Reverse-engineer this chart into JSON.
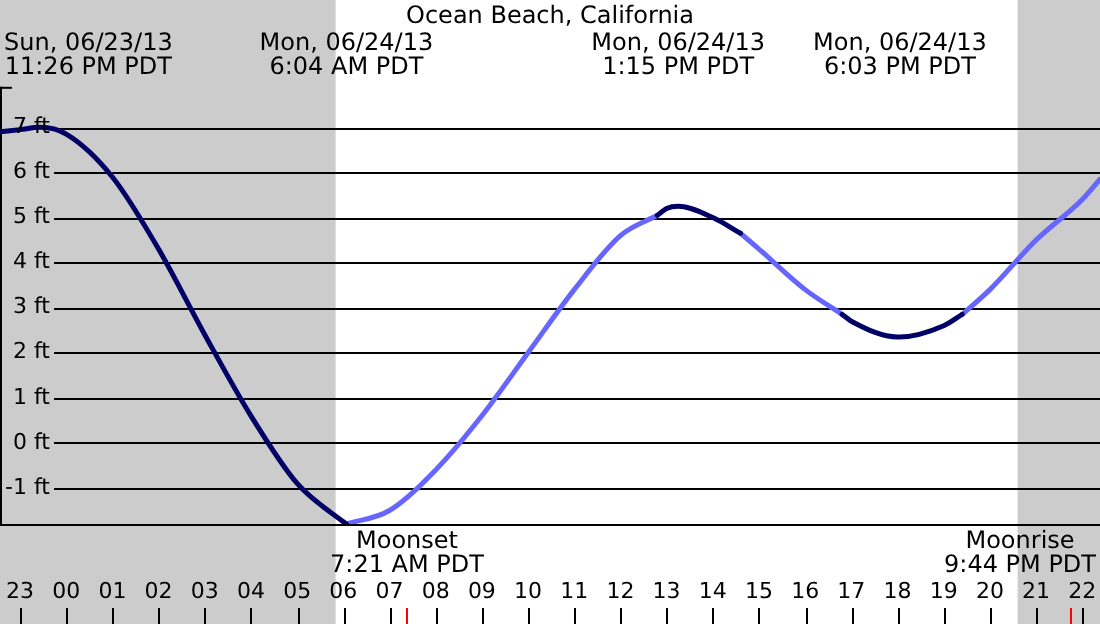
{
  "chart_data": {
    "type": "line",
    "title": "Ocean Beach, California",
    "series": [
      {
        "color": "#000066",
        "x": [
          "--06-23T22:34",
          "--06-23T23:00",
          "--06-23T23:26",
          "--06-24T00:00",
          "--06-24T01:00",
          "--06-24T02:00",
          "--06-24T03:00",
          "--06-24T04:00",
          "--06-24T05:00",
          "--06-24T06:00",
          "--06-24T06:04",
          "--06-24T09:00",
          "--06-24T12:48",
          "--06-24T13:00",
          "--06-24T13:15",
          "--06-24T14:00",
          "--06-24T14:36",
          "--06-24T15:42",
          "--06-24T16:48",
          "--06-24T17:00",
          "--06-24T18:00",
          "--06-24T18:03",
          "--06-24T19:00",
          "--06-24T19:24"
        ],
        "values": [
          6.9,
          6.95,
          7.0,
          6.85,
          5.9,
          4.3,
          2.4,
          0.6,
          -0.9,
          -1.75,
          -1.8,
          null,
          5.05,
          5.2,
          5.25,
          5.0,
          4.65,
          null,
          2.85,
          2.7,
          2.35,
          2.35,
          2.6,
          2.85
        ]
      },
      {
        "color": "#6666ff",
        "x": [
          "--06-24T06:04",
          "--06-24T07:00",
          "--06-24T08:00",
          "--06-24T09:00",
          "--06-24T10:00",
          "--06-24T11:00",
          "--06-24T12:00",
          "--06-24T12:48",
          "--06-24T13:42",
          "--06-24T14:36",
          "--06-24T15:00",
          "--06-24T16:00",
          "--06-24T16:48",
          "--06-24T18:06",
          "--06-24T19:24",
          "--06-24T20:00",
          "--06-24T21:00",
          "--06-24T22:00",
          "--06-24T22:23"
        ],
        "values": [
          -1.8,
          -1.5,
          -0.6,
          0.6,
          2.0,
          3.4,
          4.6,
          5.05,
          null,
          4.65,
          4.3,
          3.4,
          2.85,
          null,
          2.85,
          3.4,
          4.5,
          5.4,
          5.85
        ]
      }
    ],
    "xlim": [
      "--06-23T22:34",
      "--06-24T22:23"
    ],
    "xticks": [
      {
        "value": "--06-23T23:00",
        "label": "23"
      },
      {
        "value": "--06-24T00:00",
        "label": "00"
      },
      {
        "value": "--06-24T01:00",
        "label": "01"
      },
      {
        "value": "--06-24T02:00",
        "label": "02"
      },
      {
        "value": "--06-24T03:00",
        "label": "03"
      },
      {
        "value": "--06-24T04:00",
        "label": "04"
      },
      {
        "value": "--06-24T05:00",
        "label": "05"
      },
      {
        "value": "--06-24T06:00",
        "label": "06"
      },
      {
        "value": "--06-24T07:00",
        "label": "07"
      },
      {
        "value": "--06-24T08:00",
        "label": "08"
      },
      {
        "value": "--06-24T09:00",
        "label": "09"
      },
      {
        "value": "--06-24T10:00",
        "label": "10"
      },
      {
        "value": "--06-24T11:00",
        "label": "11"
      },
      {
        "value": "--06-24T12:00",
        "label": "12"
      },
      {
        "value": "--06-24T13:00",
        "label": "13"
      },
      {
        "value": "--06-24T14:00",
        "label": "14"
      },
      {
        "value": "--06-24T15:00",
        "label": "15"
      },
      {
        "value": "--06-24T16:00",
        "label": "16"
      },
      {
        "value": "--06-24T17:00",
        "label": "17"
      },
      {
        "value": "--06-24T18:00",
        "label": "18"
      },
      {
        "value": "--06-24T19:00",
        "label": "19"
      },
      {
        "value": "--06-24T20:00",
        "label": "20"
      },
      {
        "value": "--06-24T21:00",
        "label": "21"
      },
      {
        "value": "--06-24T22:00",
        "label": "22"
      }
    ],
    "ylim": [
      -1.8,
      7.9
    ],
    "yticks": [
      {
        "value": -1,
        "label": "-1 ft"
      },
      {
        "value": 0,
        "label": "0 ft"
      },
      {
        "value": 1,
        "label": "1 ft"
      },
      {
        "value": 2,
        "label": "2 ft"
      },
      {
        "value": 3,
        "label": "3 ft"
      },
      {
        "value": 4,
        "label": "4 ft"
      },
      {
        "value": 5,
        "label": "5 ft"
      },
      {
        "value": 6,
        "label": "6 ft"
      },
      {
        "value": 7,
        "label": "7 ft"
      }
    ],
    "grid": "y",
    "legend": false,
    "marker": "none",
    "line_style": "solid",
    "bands": [
      {
        "axis": "x",
        "from": "--06-23T22:34",
        "to": "--06-24T05:50",
        "color": "#cccccc"
      },
      {
        "axis": "x",
        "from": "--06-24T20:36",
        "to": "--06-24T22:23",
        "color": "#cccccc"
      }
    ],
    "ref_lines": [
      {
        "axis": "x",
        "value": "--06-24T07:21",
        "label": "Moonset\n7:21 AM PDT",
        "color": "#ff0000"
      },
      {
        "axis": "x",
        "value": "--06-24T21:44",
        "label": "Moonrise\n9:44 PM PDT",
        "color": "#ff0000"
      }
    ],
    "annotations": [
      "Sun, 06/23/13\n11:26 PM PDT",
      "Mon, 06/24/13\n6:04 AM PDT",
      "Mon, 06/24/13\n1:15 PM PDT",
      "Mon, 06/24/13\n6:03 PM PDT"
    ]
  }
}
